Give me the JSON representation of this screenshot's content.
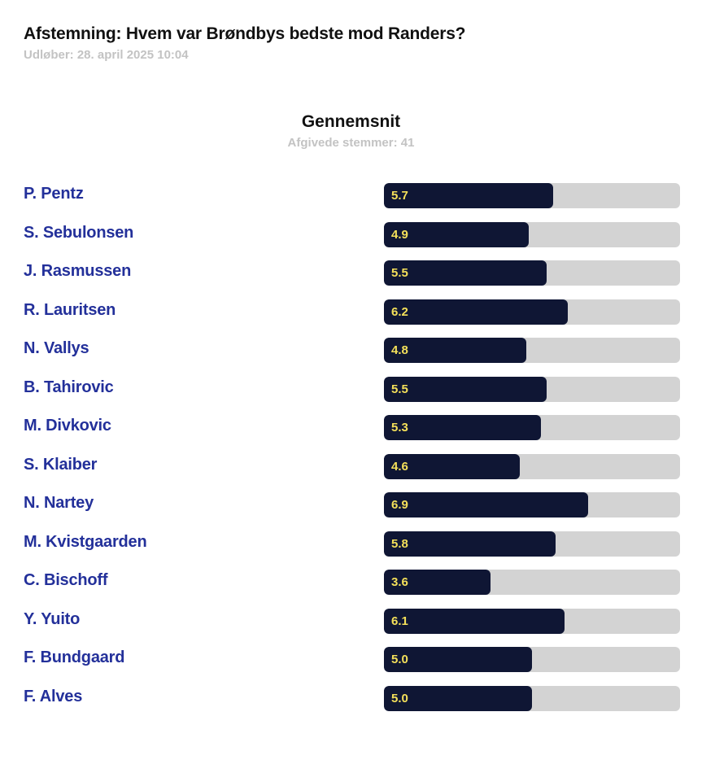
{
  "header": {
    "title": "Afstemning: Hvem var Brøndbys bedste mod Randers?",
    "expiry": "Udløber: 28. april 2025 10:04"
  },
  "summary": {
    "heading": "Gennemsnit",
    "votes": "Afgivede stemmer: 41"
  },
  "colors": {
    "bar_fill": "#0f1634",
    "bar_track": "#d3d3d3",
    "value_text": "#f4e05a",
    "player_name": "#23309a"
  },
  "chart_data": {
    "type": "bar",
    "orientation": "horizontal",
    "xlim": [
      0,
      10
    ],
    "grid": false,
    "categories": [
      "P. Pentz",
      "S. Sebulonsen",
      "J. Rasmussen",
      "R. Lauritsen",
      "N. Vallys",
      "B. Tahirovic",
      "M. Divkovic",
      "S. Klaiber",
      "N. Nartey",
      "M. Kvistgaarden",
      "C. Bischoff",
      "Y. Yuito",
      "F. Bundgaard",
      "F. Alves"
    ],
    "values": [
      5.7,
      4.9,
      5.5,
      6.2,
      4.8,
      5.5,
      5.3,
      4.6,
      6.9,
      5.8,
      3.6,
      6.1,
      5.0,
      5.0
    ],
    "value_labels": [
      "5.7",
      "4.9",
      "5.5",
      "6.2",
      "4.8",
      "5.5",
      "5.3",
      "4.6",
      "6.9",
      "5.8",
      "3.6",
      "6.1",
      "5.0",
      "5.0"
    ]
  }
}
